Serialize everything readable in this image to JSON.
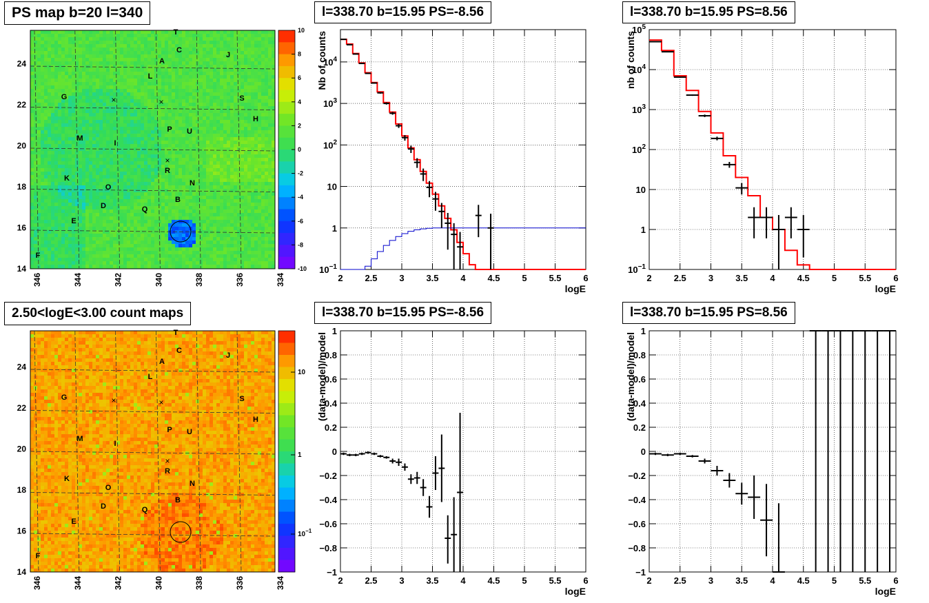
{
  "map_panels": [
    {
      "title": "PS map b=20 l=340",
      "palette": "map",
      "colorbar_ticks": [
        "10",
        "8",
        "6",
        "4",
        "2",
        "0",
        "-2",
        "-4",
        "-6",
        "-8",
        "-10"
      ],
      "colorbar_log": false
    },
    {
      "title": "2.50<logE<3.00 count maps",
      "palette": "counts",
      "colorbar_ticks": [
        "10",
        "1",
        "10^-1"
      ],
      "colorbar_log": true
    }
  ],
  "map_axes": {
    "x_ticks": [
      "346",
      "344",
      "342",
      "340",
      "338",
      "336",
      "334"
    ],
    "y_ticks": [
      "14",
      "16",
      "18",
      "20",
      "22",
      "24"
    ]
  },
  "map_sources": [
    {
      "label": "T"
    },
    {
      "label": "C"
    },
    {
      "label": "J"
    },
    {
      "label": "A"
    },
    {
      "label": "L"
    },
    {
      "label": "G"
    },
    {
      "label": "S"
    },
    {
      "label": "H"
    },
    {
      "label": "P"
    },
    {
      "label": "U"
    },
    {
      "label": "M"
    },
    {
      "label": "I"
    },
    {
      "label": "R"
    },
    {
      "label": "K"
    },
    {
      "label": "N"
    },
    {
      "label": "O"
    },
    {
      "label": "B"
    },
    {
      "label": "D"
    },
    {
      "label": "Q"
    },
    {
      "label": "E"
    },
    {
      "label": "F"
    }
  ],
  "chart_data": [
    {
      "type": "line",
      "title": "l=338.70 b=15.95 PS=-8.56",
      "xlabel": "logE",
      "ylabel": "Nb of counts",
      "xlim": [
        2,
        6
      ],
      "ylim": [
        0.1,
        60000
      ],
      "yscale": "log",
      "x_ticks": [
        "2",
        "2.5",
        "3",
        "3.5",
        "4",
        "4.5",
        "5",
        "5.5",
        "6"
      ],
      "y_ticks": [
        {
          "v": 0.1,
          "b": "10",
          "e": "−1"
        },
        {
          "v": 1,
          "b": "1",
          "e": ""
        },
        {
          "v": 10,
          "b": "10",
          "e": ""
        },
        {
          "v": 100,
          "b": "10",
          "e": "2"
        },
        {
          "v": 1000,
          "b": "10",
          "e": "3"
        },
        {
          "v": 10000,
          "b": "10",
          "e": "4"
        }
      ],
      "grid": true,
      "series": [
        {
          "kind": "step",
          "color": "#ff0000",
          "edges": [
            2,
            2.1,
            2.2,
            2.3,
            2.4,
            2.5,
            2.6,
            2.7,
            2.8,
            2.9,
            3,
            3.1,
            3.2,
            3.3,
            3.4,
            3.5,
            3.6,
            3.7,
            3.8,
            3.9,
            4,
            4.1,
            4.2,
            4.3,
            4.4,
            4.5,
            4.6,
            4.7,
            4.8,
            4.9,
            5,
            5.1,
            5.2,
            5.3,
            5.4,
            5.5,
            5.6,
            5.7,
            5.8,
            5.9,
            6
          ],
          "values": [
            35000,
            27000,
            16000,
            9500,
            5500,
            3200,
            1900,
            1050,
            620,
            320,
            165,
            85,
            44,
            23,
            12,
            6.5,
            3.4,
            1.7,
            0.9,
            0.45,
            0.24,
            0.13,
            0.1,
            0.1,
            0.1,
            0.1,
            0.1,
            0.1,
            0.1,
            0.1,
            0.1,
            0.1,
            0.1,
            0.1,
            0.1,
            0.1,
            0.1,
            0.1,
            0.1,
            0.1
          ]
        },
        {
          "kind": "step",
          "color": "#0000cc",
          "edges": [
            2,
            2.1,
            2.2,
            2.3,
            2.4,
            2.5,
            2.6,
            2.7,
            2.8,
            2.9,
            3,
            3.1,
            3.2,
            3.3,
            3.4,
            3.5,
            3.6,
            3.7,
            3.8,
            3.9,
            4,
            4.1,
            4.2,
            4.3,
            4.4,
            4.5,
            4.6,
            4.7,
            4.8,
            4.9,
            5,
            5.1,
            5.2,
            5.3,
            5.4,
            5.5,
            5.6,
            5.7,
            5.8,
            5.9,
            6
          ],
          "values": [
            0.1,
            0.1,
            0.1,
            0.1,
            0.12,
            0.18,
            0.27,
            0.38,
            0.5,
            0.62,
            0.73,
            0.83,
            0.9,
            0.95,
            0.98,
            1,
            1,
            1,
            1,
            1,
            1,
            1,
            1,
            1,
            1,
            1,
            1,
            1,
            1,
            1,
            1,
            1,
            1,
            1,
            1,
            1,
            1,
            1,
            1,
            1
          ]
        },
        {
          "kind": "points",
          "color": "#000000",
          "x": [
            2.05,
            2.15,
            2.25,
            2.35,
            2.45,
            2.55,
            2.65,
            2.75,
            2.85,
            2.95,
            3.05,
            3.15,
            3.25,
            3.35,
            3.45,
            3.55,
            3.65,
            3.75,
            3.85,
            3.95,
            4.25,
            4.45
          ],
          "xerr": 0.05,
          "y": [
            35000,
            26000,
            15500,
            9200,
            5300,
            3100,
            1800,
            1000,
            580,
            290,
            150,
            80,
            38,
            20,
            9.5,
            5,
            2.5,
            1.3,
            0.7,
            0.35,
            2,
            1
          ],
          "ylo": [
            34600,
            25700,
            15200,
            9000,
            5150,
            2990,
            1720,
            940,
            535,
            257,
            127,
            64,
            28,
            13.5,
            5.5,
            2.6,
            1,
            0.3,
            0.1,
            0.1,
            0.6,
            0.1
          ],
          "yhi": [
            35400,
            26300,
            15800,
            9400,
            5450,
            3210,
            1880,
            1060,
            625,
            323,
            173,
            96,
            48,
            27,
            13.5,
            7.4,
            4,
            2.3,
            1.3,
            0.8,
            3.6,
            2.2
          ]
        }
      ]
    },
    {
      "type": "line",
      "title": "l=338.70 b=15.95 PS=8.56",
      "xlabel": "logE",
      "ylabel": "nb of counts",
      "xlim": [
        2,
        6
      ],
      "ylim": [
        0.1,
        100000
      ],
      "yscale": "log",
      "x_ticks": [
        "2",
        "2.5",
        "3",
        "3.5",
        "4",
        "4.5",
        "5",
        "5.5",
        "6"
      ],
      "y_ticks": [
        {
          "v": 0.1,
          "b": "10",
          "e": "−1"
        },
        {
          "v": 1,
          "b": "1",
          "e": ""
        },
        {
          "v": 10,
          "b": "10",
          "e": ""
        },
        {
          "v": 100,
          "b": "10",
          "e": "2"
        },
        {
          "v": 1000,
          "b": "10",
          "e": "3"
        },
        {
          "v": 10000,
          "b": "10",
          "e": "4"
        },
        {
          "v": 100000,
          "b": "10",
          "e": "5"
        }
      ],
      "grid": true,
      "series": [
        {
          "kind": "step",
          "color": "#ff0000",
          "edges": [
            2,
            2.2,
            2.4,
            2.6,
            2.8,
            3,
            3.2,
            3.4,
            3.6,
            3.8,
            4,
            4.2,
            4.4,
            4.6,
            4.8,
            5,
            5.2,
            5.4,
            5.6,
            5.8,
            6
          ],
          "values": [
            55000,
            30000,
            7000,
            3000,
            900,
            260,
            70,
            20,
            7,
            2,
            1,
            0.3,
            0.13,
            0.1,
            0.1,
            0.1,
            0.1,
            0.1,
            0.1,
            0.1
          ]
        },
        {
          "kind": "points",
          "color": "#000000",
          "x": [
            2.1,
            2.3,
            2.5,
            2.7,
            2.9,
            3.1,
            3.3,
            3.5,
            3.7,
            3.9,
            4.1,
            4.3,
            4.5
          ],
          "xerr": 0.1,
          "y": [
            50000,
            28000,
            6500,
            2300,
            700,
            190,
            42,
            11,
            2,
            2,
            1,
            2,
            1
          ],
          "ylo": [
            49500,
            27600,
            6300,
            2200,
            650,
            170,
            35,
            7.5,
            0.6,
            0.6,
            0.1,
            0.6,
            0.2
          ],
          "yhi": [
            50500,
            28400,
            6700,
            2400,
            750,
            210,
            49,
            14.5,
            3.6,
            3.6,
            2.3,
            3.6,
            2.3
          ]
        }
      ]
    },
    {
      "type": "scatter",
      "title": "l=338.70 b=15.95 PS=-8.56",
      "xlabel": "logE",
      "ylabel": "(data-model)/model",
      "xlim": [
        2,
        6
      ],
      "ylim": [
        -1,
        1
      ],
      "yscale": "linear",
      "x_ticks": [
        "2",
        "2.5",
        "3",
        "3.5",
        "4",
        "4.5",
        "5",
        "5.5",
        "6"
      ],
      "y_ticks": [
        {
          "v": -1,
          "b": "−1",
          "e": ""
        },
        {
          "v": -0.8,
          "b": "−0.8",
          "e": ""
        },
        {
          "v": -0.6,
          "b": "−0.6",
          "e": ""
        },
        {
          "v": -0.4,
          "b": "−0.4",
          "e": ""
        },
        {
          "v": -0.2,
          "b": "−0.2",
          "e": ""
        },
        {
          "v": 0,
          "b": "0",
          "e": ""
        },
        {
          "v": 0.2,
          "b": "0.2",
          "e": ""
        },
        {
          "v": 0.4,
          "b": "0.4",
          "e": ""
        },
        {
          "v": 0.6,
          "b": "0.6",
          "e": ""
        },
        {
          "v": 0.8,
          "b": "0.8",
          "e": ""
        },
        {
          "v": 1,
          "b": "1",
          "e": ""
        }
      ],
      "grid": true,
      "series": [
        {
          "kind": "points",
          "color": "#000000",
          "x": [
            2.05,
            2.15,
            2.25,
            2.35,
            2.45,
            2.55,
            2.65,
            2.75,
            2.85,
            2.95,
            3.05,
            3.15,
            3.25,
            3.35,
            3.45,
            3.55,
            3.65,
            3.75,
            3.85,
            3.95
          ],
          "xerr": 0.05,
          "y": [
            -0.02,
            -0.03,
            -0.03,
            -0.02,
            -0.01,
            -0.02,
            -0.04,
            -0.05,
            -0.08,
            -0.09,
            -0.13,
            -0.23,
            -0.22,
            -0.3,
            -0.46,
            -0.18,
            -0.14,
            -0.72,
            -0.69,
            -0.34
          ],
          "ylo": [
            -0.03,
            -0.04,
            -0.04,
            -0.03,
            -0.02,
            -0.03,
            -0.05,
            -0.06,
            -0.1,
            -0.12,
            -0.16,
            -0.27,
            -0.27,
            -0.37,
            -0.55,
            -0.32,
            -0.42,
            -0.93,
            -1,
            -1
          ],
          "yhi": [
            -0.01,
            -0.02,
            -0.02,
            -0.01,
            0,
            -0.01,
            -0.03,
            -0.04,
            -0.06,
            -0.06,
            -0.1,
            -0.19,
            -0.17,
            -0.23,
            -0.37,
            -0.04,
            0.14,
            -0.53,
            -0.38,
            0.32
          ]
        }
      ]
    },
    {
      "type": "scatter",
      "title": "l=338.70 b=15.95 PS=8.56",
      "xlabel": "logE",
      "ylabel": "(data-model)/model",
      "xlim": [
        2,
        6
      ],
      "ylim": [
        -1,
        1
      ],
      "yscale": "linear",
      "x_ticks": [
        "2",
        "2.5",
        "3",
        "3.5",
        "4",
        "4.5",
        "5",
        "5.5",
        "6"
      ],
      "y_ticks": [
        {
          "v": -1,
          "b": "−1",
          "e": ""
        },
        {
          "v": -0.8,
          "b": "−0.8",
          "e": ""
        },
        {
          "v": -0.6,
          "b": "−0.6",
          "e": ""
        },
        {
          "v": -0.4,
          "b": "−0.4",
          "e": ""
        },
        {
          "v": -0.2,
          "b": "−0.2",
          "e": ""
        },
        {
          "v": 0,
          "b": "0",
          "e": ""
        },
        {
          "v": 0.2,
          "b": "0.2",
          "e": ""
        },
        {
          "v": 0.4,
          "b": "0.4",
          "e": ""
        },
        {
          "v": 0.6,
          "b": "0.6",
          "e": ""
        },
        {
          "v": 0.8,
          "b": "0.8",
          "e": ""
        },
        {
          "v": 1,
          "b": "1",
          "e": ""
        }
      ],
      "grid": true,
      "series": [
        {
          "kind": "points",
          "color": "#000000",
          "x": [
            2.1,
            2.3,
            2.5,
            2.7,
            2.9,
            3.1,
            3.3,
            3.5,
            3.7,
            3.9,
            4.1,
            4.7,
            4.9,
            5.1,
            5.3,
            5.5,
            5.7,
            5.9
          ],
          "xerr": 0.1,
          "y": [
            -0.02,
            -0.03,
            -0.02,
            -0.04,
            -0.08,
            -0.16,
            -0.24,
            -0.35,
            -0.38,
            -0.57,
            -1,
            1,
            1,
            1,
            1,
            1,
            1,
            1
          ],
          "ylo": [
            -0.03,
            -0.04,
            -0.03,
            -0.05,
            -0.1,
            -0.2,
            -0.3,
            -0.44,
            -0.56,
            -0.87,
            -1,
            -1,
            -1,
            -1,
            -1,
            -1,
            -1,
            -1
          ],
          "yhi": [
            -0.01,
            -0.02,
            -0.01,
            -0.03,
            -0.06,
            -0.12,
            -0.18,
            -0.26,
            -0.2,
            -0.27,
            -0.43,
            1,
            1,
            1,
            1,
            1,
            1,
            1
          ]
        }
      ]
    }
  ]
}
